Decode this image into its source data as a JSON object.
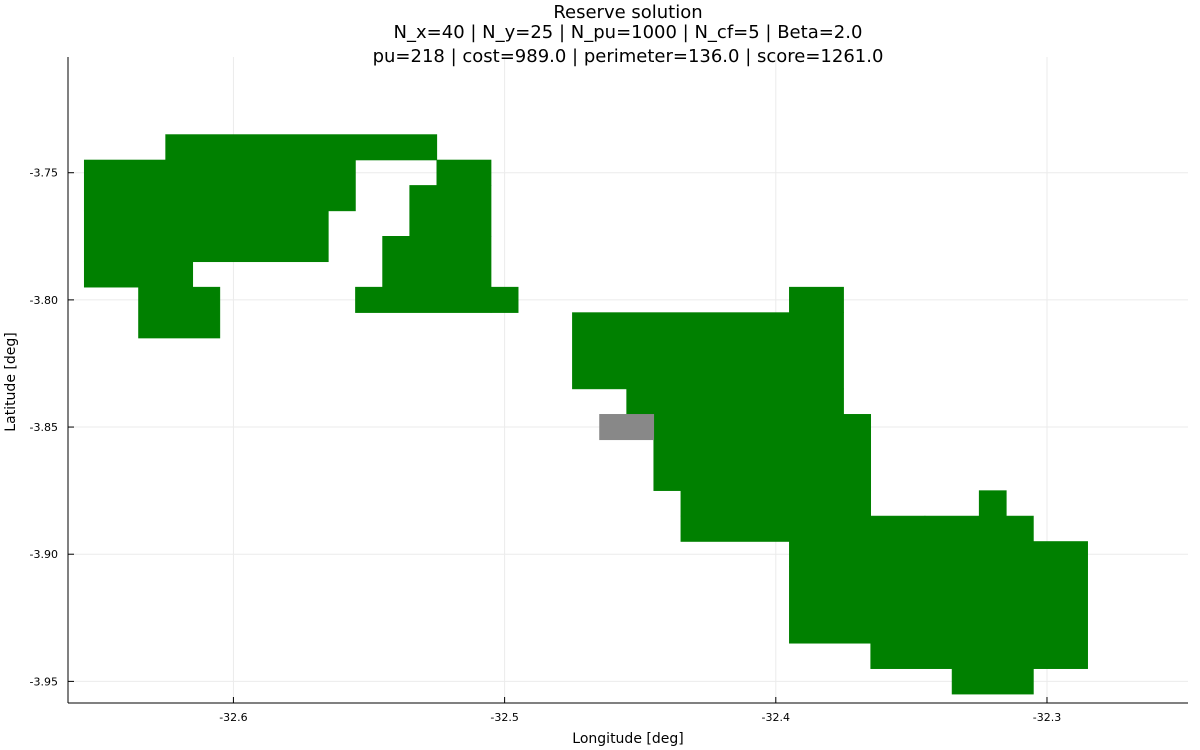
{
  "chart_data": {
    "type": "heatmap",
    "title": [
      "Reserve solution",
      "N_x=40 | N_y=25 | N_pu=1000 | N_cf=5 | Beta=2.0",
      "pu=218 | cost=989.0 | perimeter=136.0 | score=1261.0"
    ],
    "xlabel": "Longitude [deg]",
    "ylabel": "Latitude [deg]",
    "xlim": [
      -32.661,
      -32.248
    ],
    "ylim": [
      -3.9585,
      -3.7045
    ],
    "grid": true,
    "legend": "none",
    "xticks": [
      -32.6,
      -32.5,
      -32.4,
      -32.3
    ],
    "xtick_labels": [
      "-32.6",
      "-32.5",
      "-32.4",
      "-32.3"
    ],
    "yticks": [
      -3.75,
      -3.8,
      -3.85,
      -3.9,
      -3.95
    ],
    "ytick_labels": [
      "-3.75",
      "-3.80",
      "-3.85",
      "-3.90",
      "-3.95"
    ],
    "cell_size_deg": 0.01,
    "colors": {
      "selected": "#008000",
      "locked": "#888888"
    },
    "regions": [
      {
        "name": "selected",
        "color": "#008000",
        "rects": [
          [
            -32.625,
            -32.525,
            -3.745,
            -3.735
          ],
          [
            -32.525,
            -32.505,
            -3.755,
            -3.745
          ],
          [
            -32.655,
            -32.555,
            -3.765,
            -3.745
          ],
          [
            -32.535,
            -32.505,
            -3.775,
            -3.755
          ],
          [
            -32.655,
            -32.565,
            -3.785,
            -3.765
          ],
          [
            -32.545,
            -32.505,
            -3.795,
            -3.775
          ],
          [
            -32.655,
            -32.615,
            -3.795,
            -3.785
          ],
          [
            -32.555,
            -32.505,
            -3.805,
            -3.795
          ],
          [
            -32.505,
            -32.495,
            -3.805,
            -3.795
          ],
          [
            -32.635,
            -32.605,
            -3.815,
            -3.795
          ],
          [
            -32.395,
            -32.375,
            -3.805,
            -3.795
          ],
          [
            -32.475,
            -32.375,
            -3.835,
            -3.805
          ],
          [
            -32.455,
            -32.375,
            -3.845,
            -3.835
          ],
          [
            -32.445,
            -32.365,
            -3.875,
            -3.845
          ],
          [
            -32.435,
            -32.365,
            -3.885,
            -3.875
          ],
          [
            -32.435,
            -32.345,
            -3.895,
            -3.885
          ],
          [
            -32.395,
            -32.335,
            -3.905,
            -3.895
          ],
          [
            -32.395,
            -32.305,
            -3.935,
            -3.905
          ],
          [
            -32.365,
            -32.305,
            -3.945,
            -3.935
          ],
          [
            -32.335,
            -32.305,
            -3.955,
            -3.945
          ],
          [
            -32.325,
            -32.315,
            -3.885,
            -3.875
          ],
          [
            -32.345,
            -32.305,
            -3.895,
            -3.885
          ],
          [
            -32.335,
            -32.285,
            -3.905,
            -3.895
          ],
          [
            -32.305,
            -32.285,
            -3.945,
            -3.905
          ]
        ]
      },
      {
        "name": "locked",
        "color": "#888888",
        "rects": [
          [
            -32.465,
            -32.445,
            -3.855,
            -3.845
          ]
        ]
      }
    ]
  }
}
